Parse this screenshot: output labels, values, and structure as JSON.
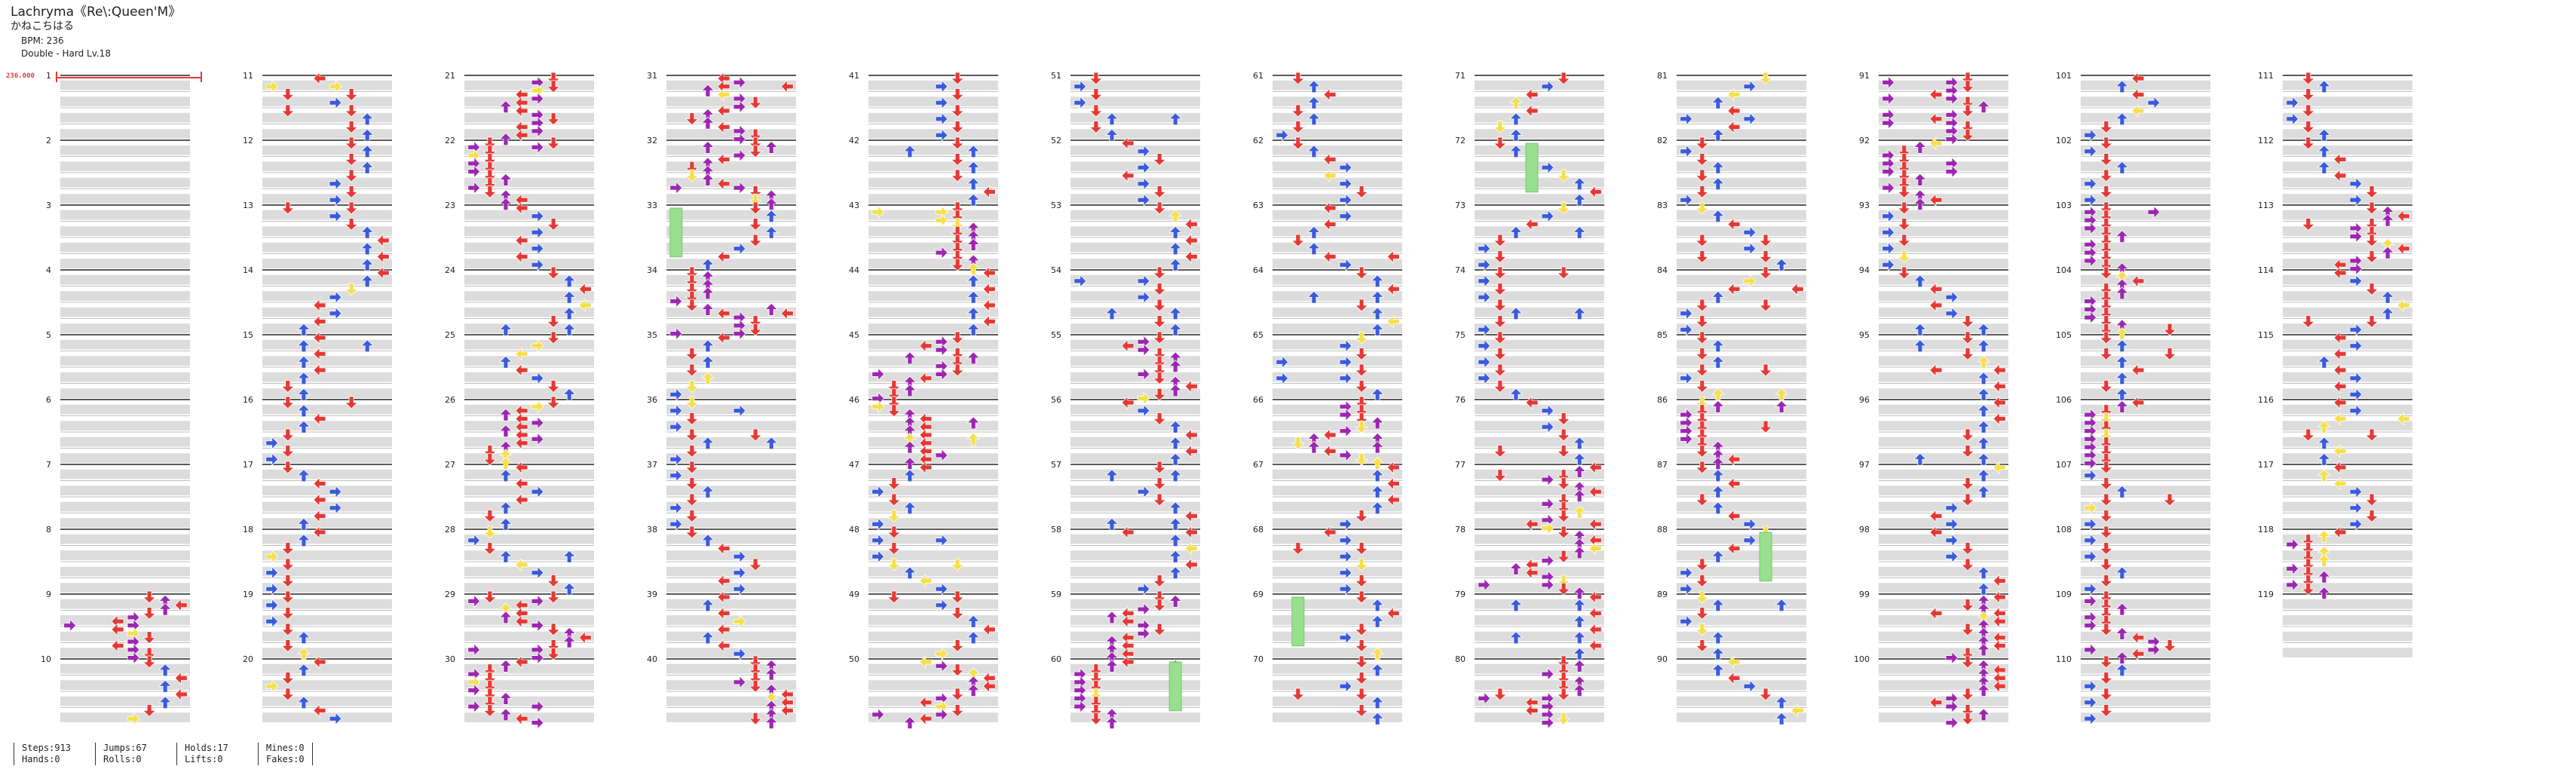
{
  "song": {
    "title": "Lachryma《Re\\:Queen'M》",
    "artist": "かねこちはる",
    "bpm": "BPM: 236",
    "difficulty": "Double - Hard Lv.18"
  },
  "bpm_marker": "236.000",
  "measure_numbers": [
    1,
    2,
    3,
    4,
    5,
    6,
    7,
    8,
    9,
    10,
    11,
    12,
    13,
    14,
    15,
    16,
    17,
    18,
    19,
    20,
    21,
    22,
    23,
    24,
    25,
    26,
    27,
    28,
    29,
    30,
    31,
    32,
    33,
    34,
    35,
    36,
    37,
    38,
    39,
    40,
    41,
    42,
    43,
    44,
    45,
    46,
    47,
    48,
    49,
    50,
    51,
    52,
    53,
    54,
    55,
    56,
    57,
    58,
    59,
    60,
    61,
    62,
    63,
    64,
    65,
    66,
    67,
    68,
    69,
    70,
    71,
    72,
    73,
    74,
    75,
    76,
    77,
    78,
    79,
    80,
    81,
    82,
    83,
    84,
    85,
    86,
    87,
    88,
    89,
    90,
    91,
    92,
    93,
    94,
    95,
    96,
    97,
    98,
    99,
    100,
    101,
    102,
    103,
    104,
    105,
    106,
    107,
    108,
    109,
    110,
    111,
    112,
    113,
    114,
    115,
    116,
    117,
    118,
    119
  ],
  "colors": {
    "quarter": "#e53935",
    "eighth": "#3b5bdb",
    "sixteenth": "#9c27b0",
    "other": "#f4e04d",
    "hold": "#98e08f",
    "band": "#dcdcdc",
    "beat_line": "#222222"
  },
  "stats": {
    "steps": "Steps:913",
    "hands": "Hands:0",
    "jumps": "Jumps:67",
    "rolls": "Rolls:0",
    "holds": "Holds:17",
    "lifts": "Lifts:0",
    "mines": "Mines:0",
    "fakes": "Fakes:0"
  }
}
